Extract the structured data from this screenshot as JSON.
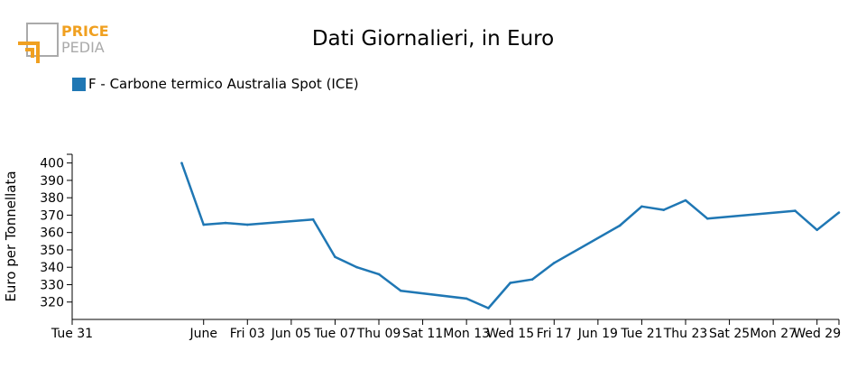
{
  "logo": {
    "line1": "PRICE",
    "line2": "PEDIA",
    "accent": "#f0a020",
    "muted": "#aaaaaa"
  },
  "chart_data": {
    "type": "line",
    "title": "Dati Giornalieri, in Euro",
    "ylabel": "Euro per Tonnellata",
    "xlabel": "",
    "ylim": [
      310,
      405
    ],
    "yticks": [
      320,
      330,
      340,
      350,
      360,
      370,
      380,
      390,
      400
    ],
    "xlim": [
      "2020-05-26",
      "2020-06-30"
    ],
    "xticks": [
      {
        "date": "2020-05-26",
        "label": "Tue 31"
      },
      {
        "date": "2020-06-01",
        "label": "June"
      },
      {
        "date": "2020-06-03",
        "label": "Fri 03"
      },
      {
        "date": "2020-06-05",
        "label": "Jun 05"
      },
      {
        "date": "2020-06-07",
        "label": "Tue 07"
      },
      {
        "date": "2020-06-09",
        "label": "Thu 09"
      },
      {
        "date": "2020-06-11",
        "label": "Sat 11"
      },
      {
        "date": "2020-06-13",
        "label": "Mon 13"
      },
      {
        "date": "2020-06-15",
        "label": "Wed 15"
      },
      {
        "date": "2020-06-17",
        "label": "Fri 17"
      },
      {
        "date": "2020-06-19",
        "label": "Jun 19"
      },
      {
        "date": "2020-06-21",
        "label": "Tue 21"
      },
      {
        "date": "2020-06-23",
        "label": "Thu 23"
      },
      {
        "date": "2020-06-25",
        "label": "Sat 25"
      },
      {
        "date": "2020-06-27",
        "label": "Mon 27"
      },
      {
        "date": "2020-06-29",
        "label": "Wed 29"
      }
    ],
    "series": [
      {
        "name": "F - Carbone termico Australia Spot (ICE)",
        "color": "#1f77b4",
        "points": [
          {
            "x": "2020-05-31",
            "y": 400
          },
          {
            "x": "2020-06-01",
            "y": 364.5
          },
          {
            "x": "2020-06-02",
            "y": 365.5
          },
          {
            "x": "2020-06-03",
            "y": 364.5
          },
          {
            "x": "2020-06-06",
            "y": 367.5
          },
          {
            "x": "2020-06-07",
            "y": 346
          },
          {
            "x": "2020-06-08",
            "y": 340
          },
          {
            "x": "2020-06-09",
            "y": 336
          },
          {
            "x": "2020-06-10",
            "y": 326.5
          },
          {
            "x": "2020-06-13",
            "y": 322
          },
          {
            "x": "2020-06-14",
            "y": 316.5
          },
          {
            "x": "2020-06-15",
            "y": 331
          },
          {
            "x": "2020-06-16",
            "y": 333
          },
          {
            "x": "2020-06-17",
            "y": 342.5
          },
          {
            "x": "2020-06-20",
            "y": 364
          },
          {
            "x": "2020-06-21",
            "y": 375
          },
          {
            "x": "2020-06-22",
            "y": 373
          },
          {
            "x": "2020-06-23",
            "y": 378.5
          },
          {
            "x": "2020-06-24",
            "y": 368
          },
          {
            "x": "2020-06-28",
            "y": 372.5
          },
          {
            "x": "2020-06-29",
            "y": 361.5
          },
          {
            "x": "2020-06-30",
            "y": 371.5
          }
        ]
      }
    ],
    "grid": false,
    "legend_position": "top-left"
  }
}
